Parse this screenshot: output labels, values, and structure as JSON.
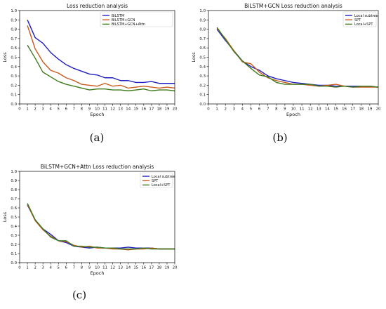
{
  "chart_data": [
    {
      "type": "line",
      "title": "Loss reduction analysis",
      "xlabel": "Epoch",
      "ylabel": "Loss",
      "xlim": [
        0,
        20
      ],
      "ylim": [
        0,
        1.0
      ],
      "xticks": [
        0,
        1,
        2,
        3,
        4,
        5,
        6,
        7,
        8,
        9,
        10,
        11,
        12,
        13,
        14,
        15,
        16,
        17,
        18,
        19,
        20
      ],
      "yticks": [
        0.0,
        0.1,
        0.2,
        0.3,
        0.4,
        0.5,
        0.6,
        0.7,
        0.8,
        0.9,
        1.0
      ],
      "legend_position": "top-right",
      "caption": "(a)",
      "x": [
        1,
        2,
        3,
        4,
        5,
        6,
        7,
        8,
        9,
        10,
        11,
        12,
        13,
        14,
        15,
        16,
        17,
        18,
        19,
        20
      ],
      "series": [
        {
          "name": "BiLSTM",
          "color": "#1f1fbf",
          "values": [
            0.9,
            0.71,
            0.65,
            0.55,
            0.48,
            0.42,
            0.38,
            0.35,
            0.32,
            0.31,
            0.28,
            0.28,
            0.25,
            0.25,
            0.23,
            0.23,
            0.24,
            0.22,
            0.22,
            0.22
          ]
        },
        {
          "name": "BiLSTM+GCN",
          "color": "#c85a1e",
          "values": [
            0.84,
            0.59,
            0.45,
            0.36,
            0.33,
            0.28,
            0.25,
            0.21,
            0.2,
            0.19,
            0.22,
            0.19,
            0.2,
            0.17,
            0.18,
            0.19,
            0.18,
            0.17,
            0.18,
            0.17
          ]
        },
        {
          "name": "BiLSTM+GCN+Attn",
          "color": "#3d7a1c",
          "values": [
            0.63,
            0.49,
            0.34,
            0.29,
            0.24,
            0.21,
            0.19,
            0.17,
            0.15,
            0.16,
            0.16,
            0.15,
            0.15,
            0.14,
            0.15,
            0.16,
            0.14,
            0.15,
            0.15,
            0.14
          ]
        }
      ]
    },
    {
      "type": "line",
      "title": "BiLSTM+GCN Loss reduction analysis",
      "xlabel": "Epoch",
      "ylabel": "Loss",
      "xlim": [
        0,
        20
      ],
      "ylim": [
        0,
        1.0
      ],
      "xticks": [
        0,
        1,
        2,
        3,
        4,
        5,
        6,
        7,
        8,
        9,
        10,
        11,
        12,
        13,
        14,
        15,
        16,
        17,
        18,
        19,
        20
      ],
      "yticks": [
        0.0,
        0.1,
        0.2,
        0.3,
        0.4,
        0.5,
        0.6,
        0.7,
        0.8,
        0.9,
        1.0
      ],
      "legend_position": "top-right",
      "caption": "(b)",
      "x": [
        1,
        2,
        3,
        4,
        5,
        6,
        7,
        8,
        9,
        10,
        11,
        12,
        13,
        14,
        15,
        16,
        17,
        18,
        19,
        20
      ],
      "series": [
        {
          "name": "Local subtree",
          "color": "#1f1fbf",
          "values": [
            0.8,
            0.68,
            0.57,
            0.46,
            0.4,
            0.36,
            0.3,
            0.27,
            0.25,
            0.23,
            0.22,
            0.21,
            0.2,
            0.2,
            0.19,
            0.19,
            0.19,
            0.19,
            0.19,
            0.18
          ]
        },
        {
          "name": "SPT",
          "color": "#c85a1e",
          "values": [
            0.81,
            0.7,
            0.57,
            0.45,
            0.43,
            0.34,
            0.28,
            0.25,
            0.23,
            0.21,
            0.21,
            0.2,
            0.19,
            0.2,
            0.21,
            0.19,
            0.18,
            0.18,
            0.18,
            0.18
          ]
        },
        {
          "name": "Local+SPT",
          "color": "#3d7a1c",
          "values": [
            0.82,
            0.69,
            0.56,
            0.46,
            0.38,
            0.31,
            0.29,
            0.23,
            0.21,
            0.21,
            0.21,
            0.21,
            0.19,
            0.19,
            0.18,
            0.19,
            0.18,
            0.19,
            0.19,
            0.18
          ]
        }
      ]
    },
    {
      "type": "line",
      "title": "BiLSTM+GCN+Attn Loss reduction analysis",
      "xlabel": "Epoch",
      "ylabel": "Loss",
      "xlim": [
        0,
        20
      ],
      "ylim": [
        0,
        1.0
      ],
      "xticks": [
        0,
        1,
        2,
        3,
        4,
        5,
        6,
        7,
        8,
        9,
        10,
        11,
        12,
        13,
        14,
        15,
        16,
        17,
        18,
        19,
        20
      ],
      "yticks": [
        0.0,
        0.1,
        0.2,
        0.3,
        0.4,
        0.5,
        0.6,
        0.7,
        0.8,
        0.9,
        1.0
      ],
      "legend_position": "top-right",
      "caption": "(c)",
      "x": [
        1,
        2,
        3,
        4,
        5,
        6,
        7,
        8,
        9,
        10,
        11,
        12,
        13,
        14,
        15,
        16,
        17,
        18,
        19,
        20
      ],
      "series": [
        {
          "name": "Local subtree",
          "color": "#1f1fbf",
          "values": [
            0.63,
            0.47,
            0.37,
            0.31,
            0.24,
            0.22,
            0.18,
            0.17,
            0.16,
            0.17,
            0.16,
            0.16,
            0.16,
            0.17,
            0.16,
            0.16,
            0.16,
            0.15,
            0.15,
            0.15
          ]
        },
        {
          "name": "SPT",
          "color": "#c85a1e",
          "values": [
            0.64,
            0.46,
            0.36,
            0.29,
            0.24,
            0.23,
            0.19,
            0.17,
            0.18,
            0.16,
            0.16,
            0.15,
            0.15,
            0.14,
            0.15,
            0.15,
            0.16,
            0.15,
            0.15,
            0.15
          ]
        },
        {
          "name": "Local+SPT",
          "color": "#3d7a1c",
          "values": [
            0.65,
            0.47,
            0.37,
            0.28,
            0.24,
            0.24,
            0.18,
            0.18,
            0.17,
            0.17,
            0.16,
            0.16,
            0.15,
            0.15,
            0.15,
            0.16,
            0.15,
            0.15,
            0.15,
            0.15
          ]
        }
      ]
    }
  ]
}
